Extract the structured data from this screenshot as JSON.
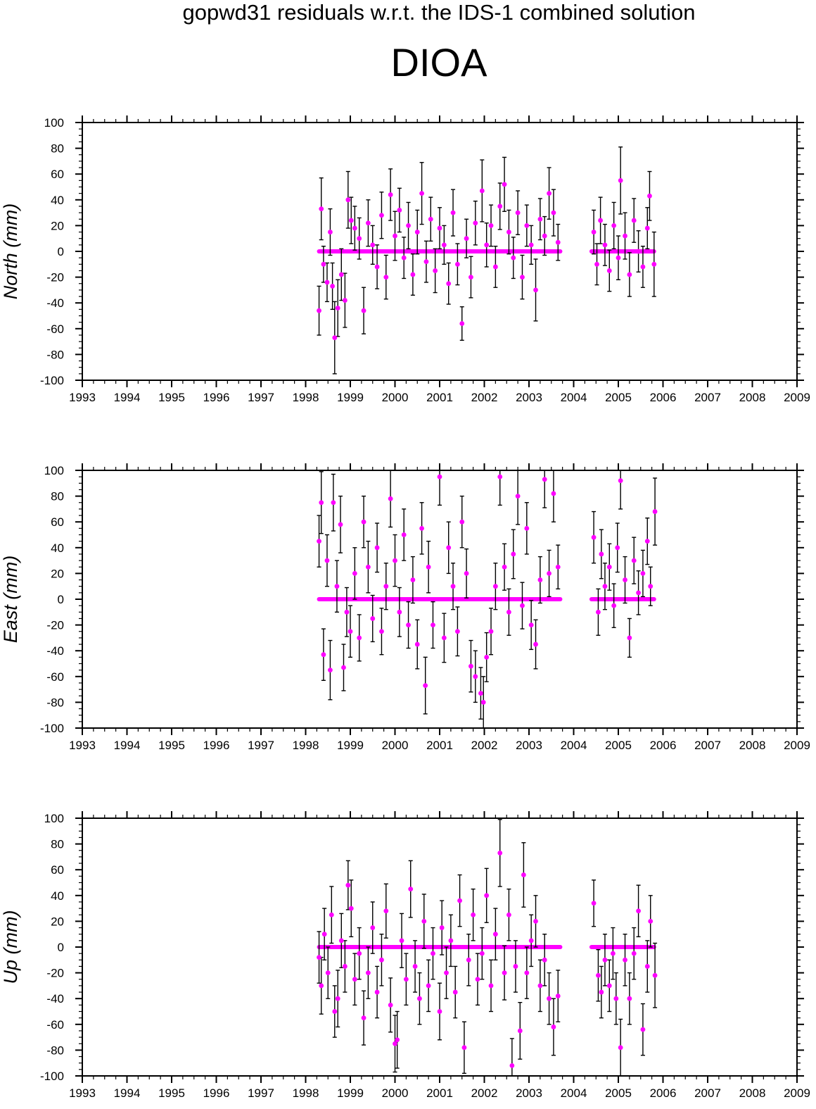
{
  "title": "gopwd31 residuals w.r.t. the IDS-1 combined solution",
  "station": "DIOA",
  "colors": {
    "point": "#ff00ff",
    "errorbar": "#000000",
    "frame": "#000000",
    "background": "#ffffff"
  },
  "chart_data": [
    {
      "type": "scatter",
      "ylabel": "North (mm)",
      "xlim": [
        1993,
        2009
      ],
      "ylim": [
        -100,
        100
      ],
      "xticks": [
        "1993",
        "1994",
        "1995",
        "1996",
        "1997",
        "1998",
        "1999",
        "2000",
        "2001",
        "2002",
        "2003",
        "2004",
        "2005",
        "2006",
        "2007",
        "2008",
        "2009"
      ],
      "yticks": [
        "100",
        "80",
        "60",
        "40",
        "20",
        "0",
        "-20",
        "-40",
        "-60",
        "-80",
        "-100"
      ],
      "segments": [
        [
          1998.3,
          2003.7
        ],
        [
          2004.4,
          2005.8
        ]
      ],
      "points": [
        [
          1998.3,
          -46,
          19
        ],
        [
          1998.35,
          33,
          24
        ],
        [
          1998.4,
          -10,
          14
        ],
        [
          1998.48,
          -24,
          15
        ],
        [
          1998.55,
          15,
          18
        ],
        [
          1998.6,
          -27,
          18
        ],
        [
          1998.65,
          -67,
          28
        ],
        [
          1998.72,
          -44,
          22
        ],
        [
          1998.8,
          -18,
          20
        ],
        [
          1998.88,
          -38,
          21
        ],
        [
          1998.95,
          40,
          22
        ],
        [
          1999.02,
          24,
          18
        ],
        [
          1999.1,
          18,
          17
        ],
        [
          1999.2,
          10,
          16
        ],
        [
          1999.3,
          -46,
          18
        ],
        [
          1999.4,
          22,
          18
        ],
        [
          1999.5,
          5,
          15
        ],
        [
          1999.6,
          -12,
          17
        ],
        [
          1999.7,
          28,
          18
        ],
        [
          1999.8,
          -20,
          17
        ],
        [
          1999.9,
          44,
          20
        ],
        [
          2000.0,
          12,
          19
        ],
        [
          2000.1,
          32,
          17
        ],
        [
          2000.2,
          -5,
          16
        ],
        [
          2000.3,
          20,
          18
        ],
        [
          2000.4,
          -18,
          16
        ],
        [
          2000.5,
          15,
          17
        ],
        [
          2000.6,
          45,
          24
        ],
        [
          2000.7,
          -8,
          16
        ],
        [
          2000.8,
          25,
          17
        ],
        [
          2000.9,
          -15,
          17
        ],
        [
          2001.0,
          18,
          16
        ],
        [
          2001.1,
          5,
          15
        ],
        [
          2001.2,
          -25,
          16
        ],
        [
          2001.3,
          30,
          18
        ],
        [
          2001.4,
          -10,
          16
        ],
        [
          2001.5,
          -56,
          13
        ],
        [
          2001.6,
          10,
          15
        ],
        [
          2001.7,
          -20,
          16
        ],
        [
          2001.8,
          22,
          17
        ],
        [
          2001.95,
          47,
          24
        ],
        [
          2002.05,
          5,
          17
        ],
        [
          2002.15,
          20,
          16
        ],
        [
          2002.25,
          -12,
          16
        ],
        [
          2002.35,
          35,
          18
        ],
        [
          2002.45,
          52,
          21
        ],
        [
          2002.55,
          15,
          17
        ],
        [
          2002.65,
          -5,
          16
        ],
        [
          2002.75,
          30,
          17
        ],
        [
          2002.85,
          -20,
          17
        ],
        [
          2002.95,
          20,
          16
        ],
        [
          2003.05,
          5,
          15
        ],
        [
          2003.15,
          -30,
          24
        ],
        [
          2003.25,
          25,
          16
        ],
        [
          2003.35,
          12,
          15
        ],
        [
          2003.45,
          45,
          20
        ],
        [
          2003.55,
          30,
          18
        ],
        [
          2003.65,
          7,
          14
        ],
        [
          2004.45,
          15,
          17
        ],
        [
          2004.52,
          -10,
          16
        ],
        [
          2004.6,
          24,
          18
        ],
        [
          2004.7,
          5,
          16
        ],
        [
          2004.8,
          -15,
          16
        ],
        [
          2004.9,
          20,
          18
        ],
        [
          2005.0,
          -5,
          17
        ],
        [
          2005.05,
          55,
          26
        ],
        [
          2005.15,
          12,
          18
        ],
        [
          2005.25,
          -18,
          17
        ],
        [
          2005.35,
          24,
          17
        ],
        [
          2005.45,
          0,
          16
        ],
        [
          2005.55,
          -12,
          16
        ],
        [
          2005.65,
          18,
          16
        ],
        [
          2005.7,
          43,
          19
        ],
        [
          2005.8,
          -10,
          25
        ]
      ]
    },
    {
      "type": "scatter",
      "ylabel": "East (mm)",
      "xlim": [
        1993,
        2009
      ],
      "ylim": [
        -100,
        100
      ],
      "xticks": [
        "1993",
        "1994",
        "1995",
        "1996",
        "1997",
        "1998",
        "1999",
        "2000",
        "2001",
        "2002",
        "2003",
        "2004",
        "2005",
        "2006",
        "2007",
        "2008",
        "2009"
      ],
      "yticks": [
        "100",
        "80",
        "60",
        "40",
        "20",
        "0",
        "-20",
        "-40",
        "-60",
        "-80",
        "-100"
      ],
      "segments": [
        [
          1998.3,
          2003.7
        ],
        [
          2004.4,
          2005.8
        ]
      ],
      "points": [
        [
          1998.3,
          45,
          20
        ],
        [
          1998.35,
          75,
          24
        ],
        [
          1998.4,
          -43,
          20
        ],
        [
          1998.48,
          30,
          20
        ],
        [
          1998.55,
          -55,
          23
        ],
        [
          1998.62,
          75,
          22
        ],
        [
          1998.7,
          10,
          20
        ],
        [
          1998.78,
          58,
          22
        ],
        [
          1998.85,
          -53,
          18
        ],
        [
          1998.92,
          -10,
          19
        ],
        [
          1999.0,
          -25,
          20
        ],
        [
          1999.1,
          20,
          20
        ],
        [
          1999.2,
          -30,
          18
        ],
        [
          1999.3,
          60,
          20
        ],
        [
          1999.4,
          25,
          20
        ],
        [
          1999.5,
          -15,
          18
        ],
        [
          1999.6,
          40,
          19
        ],
        [
          1999.7,
          -25,
          18
        ],
        [
          1999.8,
          10,
          18
        ],
        [
          1999.9,
          78,
          22
        ],
        [
          2000.0,
          30,
          20
        ],
        [
          2000.1,
          -10,
          19
        ],
        [
          2000.2,
          50,
          20
        ],
        [
          2000.3,
          -20,
          18
        ],
        [
          2000.4,
          15,
          18
        ],
        [
          2000.5,
          -35,
          19
        ],
        [
          2000.6,
          55,
          20
        ],
        [
          2000.68,
          -67,
          22
        ],
        [
          2000.75,
          25,
          20
        ],
        [
          2000.85,
          -20,
          18
        ],
        [
          2001.0,
          95,
          22
        ],
        [
          2001.1,
          -30,
          19
        ],
        [
          2001.2,
          40,
          20
        ],
        [
          2001.3,
          10,
          18
        ],
        [
          2001.4,
          -25,
          19
        ],
        [
          2001.5,
          60,
          20
        ],
        [
          2001.6,
          20,
          19
        ],
        [
          2001.7,
          -52,
          20
        ],
        [
          2001.8,
          -60,
          20
        ],
        [
          2001.92,
          -73,
          20
        ],
        [
          2001.98,
          -80,
          20
        ],
        [
          2002.05,
          -45,
          19
        ],
        [
          2002.15,
          -25,
          18
        ],
        [
          2002.25,
          10,
          18
        ],
        [
          2002.35,
          95,
          22
        ],
        [
          2002.45,
          25,
          18
        ],
        [
          2002.55,
          -10,
          18
        ],
        [
          2002.65,
          35,
          19
        ],
        [
          2002.75,
          80,
          22
        ],
        [
          2002.85,
          -5,
          18
        ],
        [
          2002.95,
          55,
          20
        ],
        [
          2003.05,
          -20,
          19
        ],
        [
          2003.15,
          -35,
          19
        ],
        [
          2003.25,
          15,
          18
        ],
        [
          2003.35,
          93,
          22
        ],
        [
          2003.45,
          20,
          18
        ],
        [
          2003.55,
          82,
          22
        ],
        [
          2003.65,
          25,
          17
        ],
        [
          2004.45,
          48,
          20
        ],
        [
          2004.55,
          -10,
          18
        ],
        [
          2004.62,
          35,
          19
        ],
        [
          2004.7,
          10,
          18
        ],
        [
          2004.8,
          25,
          18
        ],
        [
          2004.9,
          -5,
          17
        ],
        [
          2004.98,
          40,
          19
        ],
        [
          2005.05,
          92,
          22
        ],
        [
          2005.15,
          15,
          18
        ],
        [
          2005.25,
          -30,
          15
        ],
        [
          2005.35,
          30,
          18
        ],
        [
          2005.45,
          5,
          17
        ],
        [
          2005.55,
          20,
          18
        ],
        [
          2005.65,
          45,
          18
        ],
        [
          2005.72,
          10,
          15
        ],
        [
          2005.82,
          68,
          26
        ]
      ]
    },
    {
      "type": "scatter",
      "ylabel": "Up (mm)",
      "xlim": [
        1993,
        2009
      ],
      "ylim": [
        -100,
        100
      ],
      "xticks": [
        "1993",
        "1994",
        "1995",
        "1996",
        "1997",
        "1998",
        "1999",
        "2000",
        "2001",
        "2002",
        "2003",
        "2004",
        "2005",
        "2006",
        "2007",
        "2008",
        "2009"
      ],
      "yticks": [
        "100",
        "80",
        "60",
        "40",
        "20",
        "0",
        "-20",
        "-40",
        "-60",
        "-80",
        "-100"
      ],
      "segments": [
        [
          1998.3,
          2003.7
        ],
        [
          2004.4,
          2005.8
        ]
      ],
      "points": [
        [
          1998.3,
          -8,
          20
        ],
        [
          1998.35,
          -30,
          22
        ],
        [
          1998.42,
          10,
          20
        ],
        [
          1998.5,
          -20,
          20
        ],
        [
          1998.58,
          25,
          22
        ],
        [
          1998.65,
          -50,
          20
        ],
        [
          1998.72,
          -40,
          22
        ],
        [
          1998.8,
          5,
          21
        ],
        [
          1998.88,
          -15,
          20
        ],
        [
          1998.95,
          48,
          19
        ],
        [
          1999.02,
          30,
          22
        ],
        [
          1999.1,
          -25,
          20
        ],
        [
          1999.2,
          -5,
          20
        ],
        [
          1999.3,
          -55,
          21
        ],
        [
          1999.4,
          -20,
          20
        ],
        [
          1999.5,
          15,
          20
        ],
        [
          1999.6,
          -35,
          20
        ],
        [
          1999.7,
          -10,
          20
        ],
        [
          1999.8,
          28,
          21
        ],
        [
          1999.9,
          -45,
          21
        ],
        [
          2000.0,
          -75,
          22
        ],
        [
          2000.05,
          -72,
          22
        ],
        [
          2000.15,
          5,
          21
        ],
        [
          2000.25,
          -25,
          20
        ],
        [
          2000.35,
          45,
          22
        ],
        [
          2000.45,
          -15,
          20
        ],
        [
          2000.55,
          -40,
          20
        ],
        [
          2000.65,
          20,
          21
        ],
        [
          2000.75,
          -30,
          20
        ],
        [
          2000.85,
          -5,
          20
        ],
        [
          2001.0,
          -50,
          22
        ],
        [
          2001.05,
          15,
          21
        ],
        [
          2001.15,
          -20,
          20
        ],
        [
          2001.25,
          5,
          20
        ],
        [
          2001.35,
          -35,
          20
        ],
        [
          2001.45,
          36,
          20
        ],
        [
          2001.55,
          -78,
          20
        ],
        [
          2001.65,
          -10,
          20
        ],
        [
          2001.75,
          25,
          20
        ],
        [
          2001.85,
          -25,
          20
        ],
        [
          2001.95,
          -5,
          20
        ],
        [
          2002.05,
          40,
          21
        ],
        [
          2002.15,
          -30,
          20
        ],
        [
          2002.25,
          10,
          20
        ],
        [
          2002.35,
          73,
          26
        ],
        [
          2002.45,
          -20,
          21
        ],
        [
          2002.55,
          25,
          20
        ],
        [
          2002.62,
          -92,
          21
        ],
        [
          2002.7,
          -15,
          20
        ],
        [
          2002.8,
          -65,
          22
        ],
        [
          2002.88,
          56,
          25
        ],
        [
          2002.95,
          -20,
          20
        ],
        [
          2003.05,
          5,
          20
        ],
        [
          2003.15,
          20,
          20
        ],
        [
          2003.25,
          -30,
          20
        ],
        [
          2003.35,
          -10,
          20
        ],
        [
          2003.45,
          -40,
          20
        ],
        [
          2003.55,
          -62,
          22
        ],
        [
          2003.65,
          -38,
          20
        ],
        [
          2004.45,
          34,
          18
        ],
        [
          2004.55,
          -22,
          20
        ],
        [
          2004.62,
          -35,
          20
        ],
        [
          2004.7,
          -10,
          20
        ],
        [
          2004.8,
          -30,
          20
        ],
        [
          2004.88,
          -5,
          20
        ],
        [
          2004.95,
          -40,
          20
        ],
        [
          2005.05,
          -78,
          22
        ],
        [
          2005.15,
          -10,
          20
        ],
        [
          2005.25,
          -40,
          20
        ],
        [
          2005.35,
          -5,
          20
        ],
        [
          2005.45,
          28,
          20
        ],
        [
          2005.55,
          -64,
          20
        ],
        [
          2005.65,
          -15,
          20
        ],
        [
          2005.72,
          20,
          20
        ],
        [
          2005.82,
          -22,
          25
        ]
      ]
    }
  ]
}
